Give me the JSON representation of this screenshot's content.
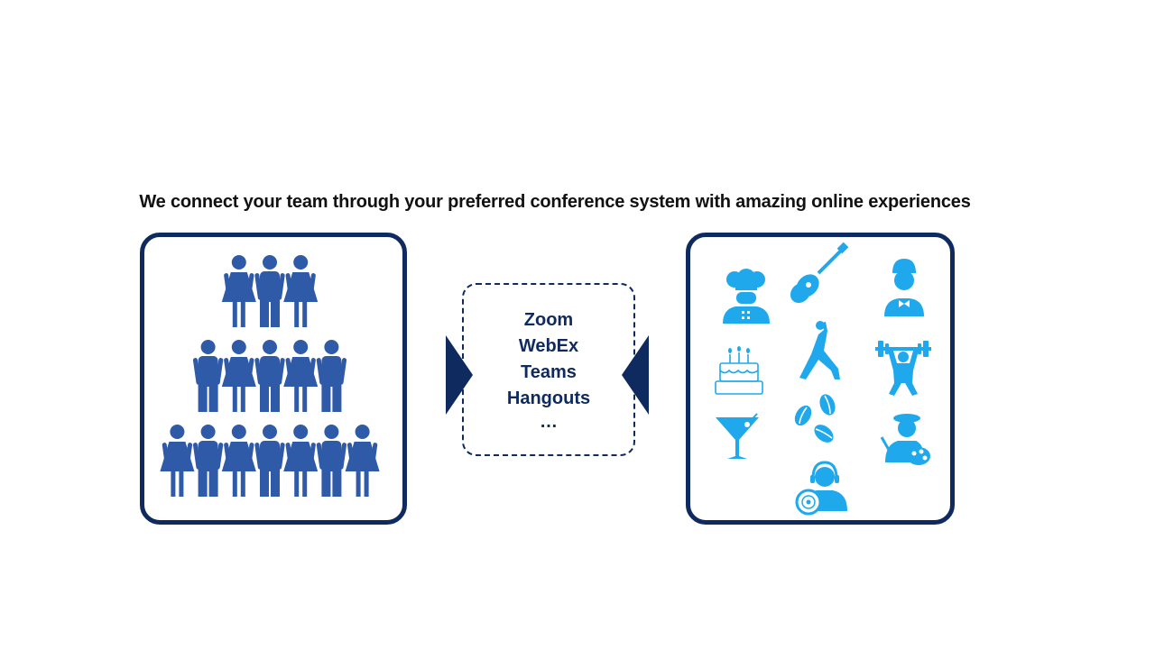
{
  "headline": "We connect your team through your preferred conference system with amazing online experiences",
  "platforms": [
    "Zoom",
    "WebEx",
    "Teams",
    "Hangouts",
    "…"
  ],
  "colors": {
    "border": "#0e2a5e",
    "people": "#2e5aa8",
    "icons": "#1fa9ec",
    "text": "#111111"
  },
  "team_pyramid": {
    "rows": [
      3,
      5,
      7
    ]
  },
  "experience_icons": [
    "chef-icon",
    "guitar-icon",
    "boy-bowtie-icon",
    "birthday-cake-icon",
    "yoga-icon",
    "weightlifting-icon",
    "cocktail-icon",
    "coffee-beans-icon",
    "painter-icon",
    "dj-icon"
  ]
}
